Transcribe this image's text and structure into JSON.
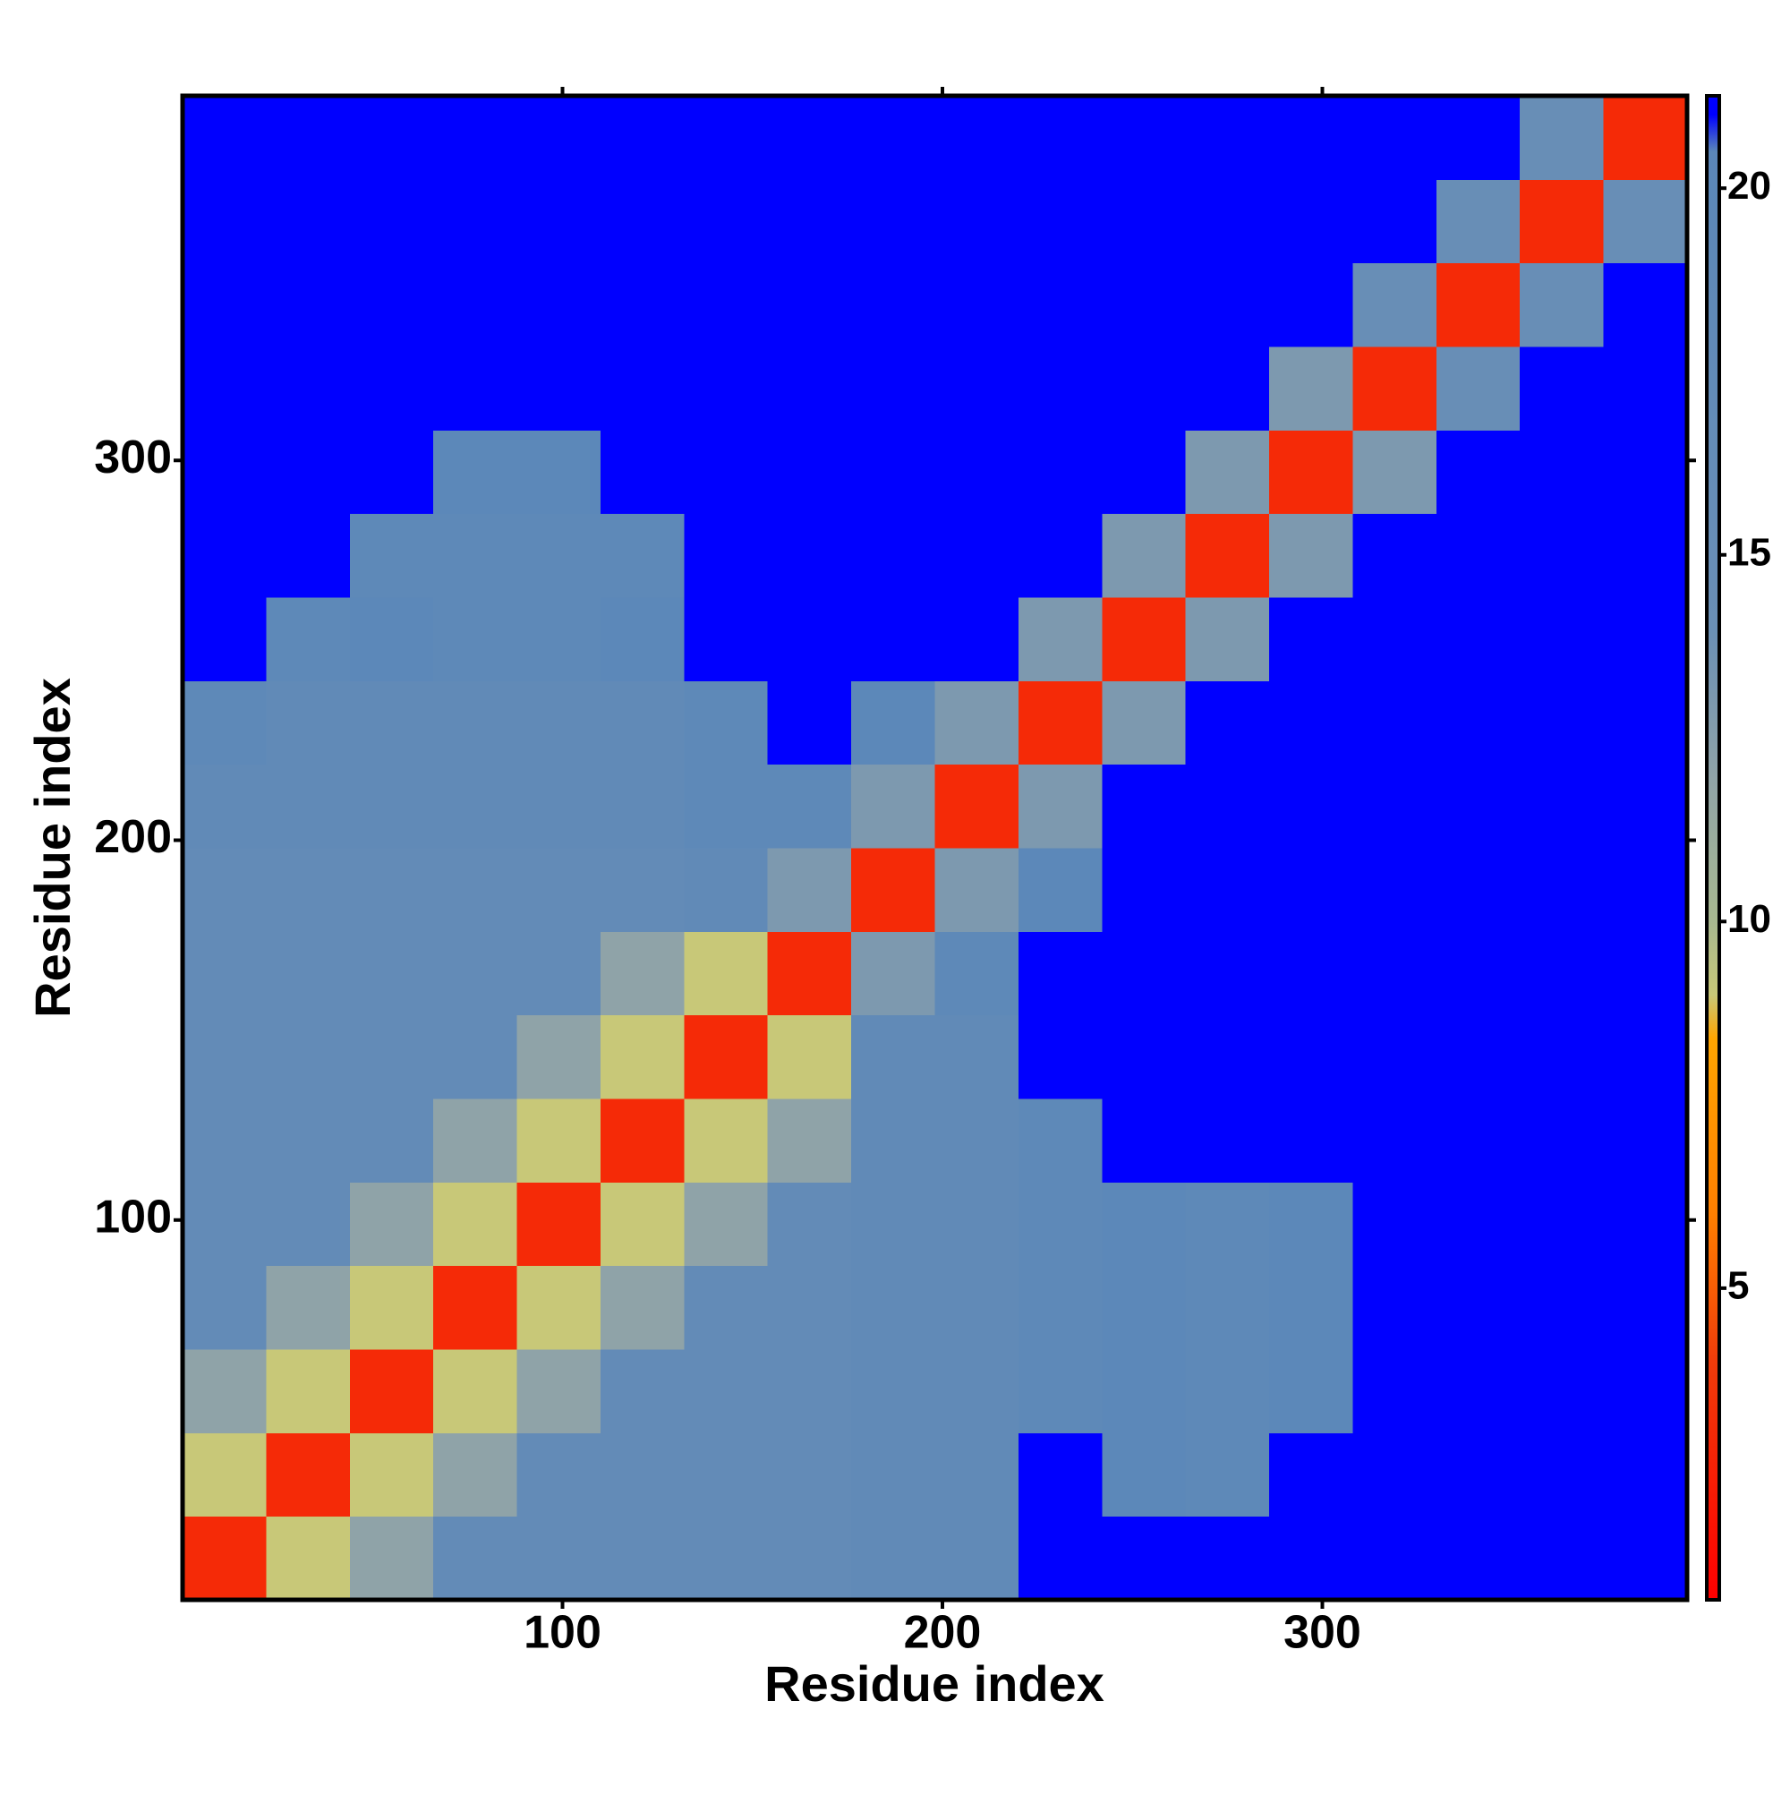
{
  "chart_data": {
    "type": "heatmap",
    "xlabel": "Residue index",
    "ylabel": "Residue index",
    "xbins": [
      0,
      22,
      44,
      66,
      88,
      110,
      132,
      154,
      176,
      198,
      220,
      242,
      264,
      286,
      308,
      330,
      352,
      374,
      396
    ],
    "ybins": [
      0,
      22,
      44,
      66,
      88,
      110,
      132,
      154,
      176,
      198,
      220,
      242,
      264,
      286,
      308,
      330,
      352,
      374,
      396
    ],
    "z": [
      [
        3,
        9,
        12,
        17,
        17,
        17,
        17,
        17,
        18,
        18,
        21,
        21,
        21,
        21,
        21,
        21,
        21,
        21
      ],
      [
        9,
        3,
        9,
        12,
        17,
        17,
        17,
        17,
        18,
        18,
        21,
        20,
        19,
        21,
        21,
        21,
        21,
        21
      ],
      [
        12,
        9,
        3,
        9,
        12,
        17,
        17,
        17,
        18,
        18,
        19,
        20,
        19,
        20,
        21,
        21,
        21,
        21
      ],
      [
        17,
        12,
        9,
        3,
        9,
        12,
        17,
        17,
        18,
        18,
        19,
        20,
        19,
        20,
        21,
        21,
        21,
        21
      ],
      [
        17,
        17,
        12,
        9,
        3,
        9,
        12,
        17,
        18,
        18,
        19,
        20,
        19,
        20,
        21,
        21,
        21,
        21
      ],
      [
        17,
        17,
        17,
        12,
        9,
        3,
        9,
        12,
        18,
        18,
        19,
        21,
        21,
        21,
        21,
        21,
        21,
        21
      ],
      [
        17,
        17,
        17,
        17,
        12,
        9,
        3,
        9,
        18,
        18,
        21,
        21,
        21,
        21,
        21,
        21,
        21,
        21
      ],
      [
        17,
        17,
        17,
        17,
        17,
        12,
        9,
        3,
        13,
        19,
        21,
        21,
        21,
        21,
        21,
        21,
        21,
        21
      ],
      [
        17,
        17,
        17,
        17,
        17,
        17,
        18,
        13,
        3,
        13,
        20,
        21,
        21,
        21,
        21,
        21,
        21,
        21
      ],
      [
        18,
        18,
        18,
        18,
        18,
        18,
        19,
        19,
        13,
        3,
        13,
        21,
        21,
        21,
        21,
        21,
        21,
        21
      ],
      [
        19,
        18,
        18,
        18,
        18,
        18,
        19,
        21,
        20,
        13,
        3,
        13,
        21,
        21,
        21,
        21,
        21,
        21
      ],
      [
        21,
        19,
        20,
        19,
        19,
        20,
        21,
        21,
        21,
        21,
        13,
        3,
        13,
        21,
        21,
        21,
        21,
        21
      ],
      [
        21,
        21,
        19,
        19,
        19,
        19,
        21,
        21,
        21,
        21,
        21,
        13,
        3,
        13,
        21,
        21,
        21,
        21
      ],
      [
        21,
        21,
        21,
        20,
        20,
        21,
        21,
        21,
        21,
        21,
        21,
        21,
        13,
        3,
        13,
        21,
        21,
        21
      ],
      [
        21,
        21,
        21,
        21,
        21,
        21,
        21,
        21,
        21,
        21,
        21,
        21,
        21,
        13,
        3,
        15,
        21,
        21
      ],
      [
        21,
        21,
        21,
        21,
        21,
        21,
        21,
        21,
        21,
        21,
        21,
        21,
        21,
        21,
        15,
        3,
        15,
        21
      ],
      [
        21,
        21,
        21,
        21,
        21,
        21,
        21,
        21,
        21,
        21,
        21,
        21,
        21,
        21,
        21,
        15,
        3,
        15
      ],
      [
        21,
        21,
        21,
        21,
        21,
        21,
        21,
        21,
        21,
        21,
        21,
        21,
        21,
        21,
        21,
        21,
        15,
        3
      ]
    ],
    "xlim": [
      0,
      396
    ],
    "ylim": [
      0,
      396
    ],
    "xticks": [
      100,
      200,
      300
    ],
    "yticks": [
      100,
      200,
      300
    ],
    "zlim": [
      0.75,
      21.26
    ],
    "zticks": [
      5,
      10,
      15,
      20
    ],
    "colorscale": [
      {
        "value": 0.75,
        "color": "#ff0000"
      },
      {
        "value": 4,
        "color": "#f03c0a"
      },
      {
        "value": 6,
        "color": "#ff7f00"
      },
      {
        "value": 8.4,
        "color": "#ffa500"
      },
      {
        "value": 9,
        "color": "#c8c878"
      },
      {
        "value": 10,
        "color": "#a8b890"
      },
      {
        "value": 12,
        "color": "#8fa3a8"
      },
      {
        "value": 14,
        "color": "#6a8fb5"
      },
      {
        "value": 20.5,
        "color": "#5b87b9"
      },
      {
        "value": 21,
        "color": "#0000ff"
      },
      {
        "value": 21.26,
        "color": "#0000ff"
      }
    ]
  }
}
